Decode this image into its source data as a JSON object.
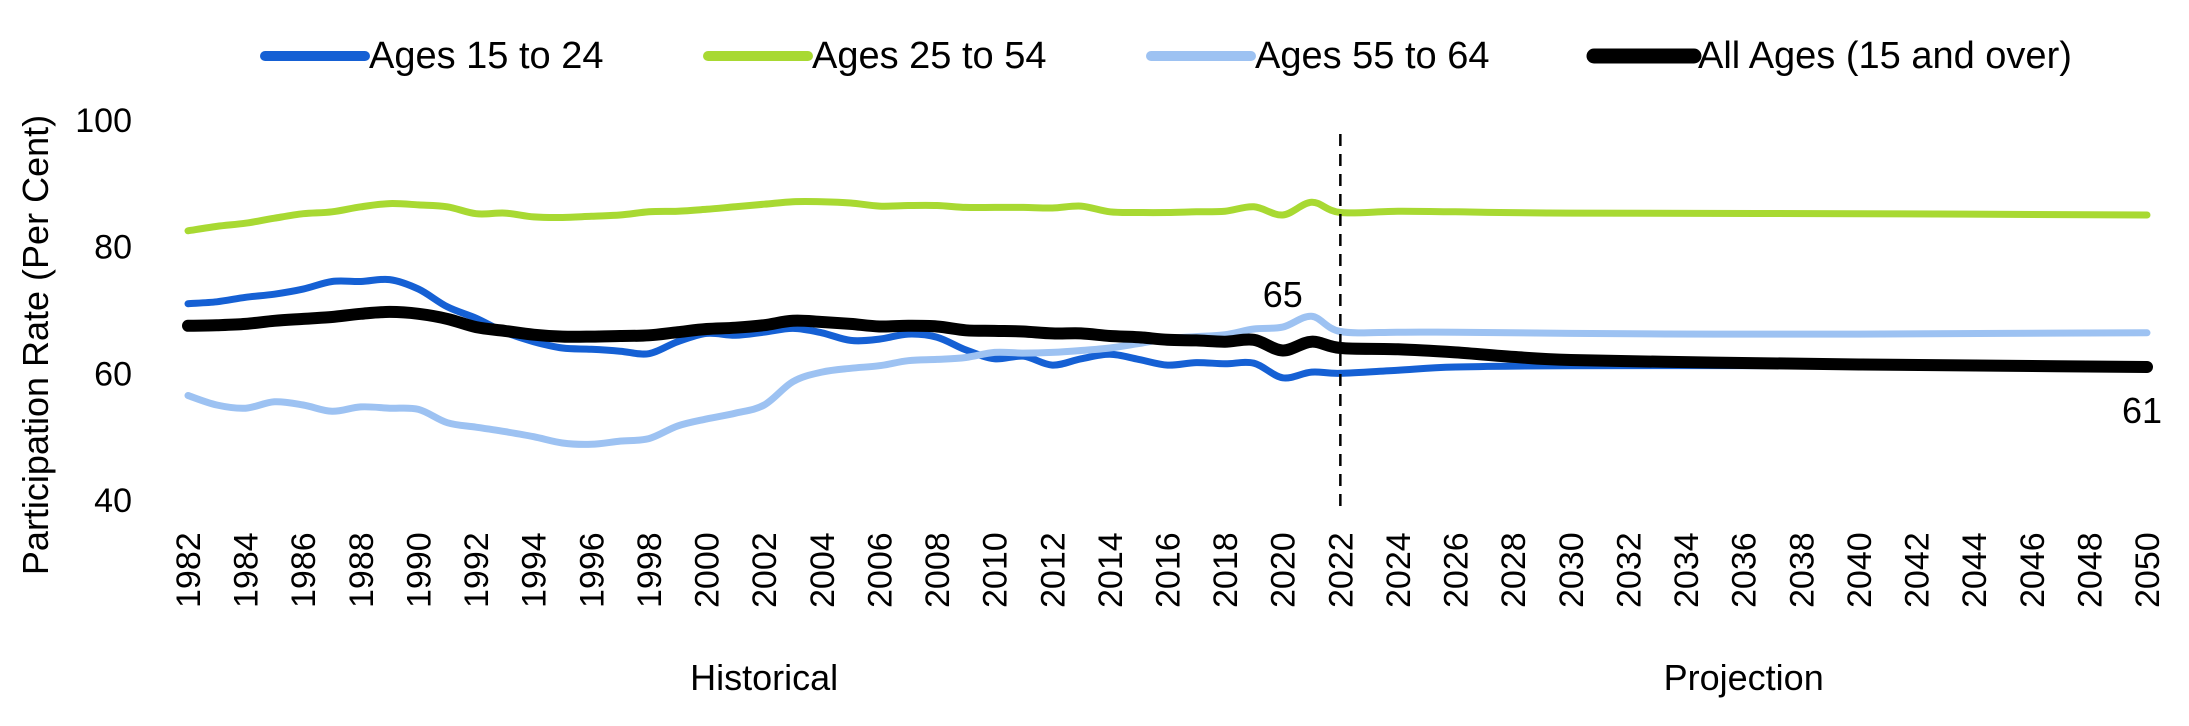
{
  "chart_data": {
    "type": "line",
    "title": "",
    "xlabel": "",
    "ylabel": "Participation Rate (Per Cent)",
    "ylim": [
      40,
      100
    ],
    "yticks": [
      40,
      60,
      80,
      100
    ],
    "xlim": [
      1982,
      2050
    ],
    "xticks": [
      1982,
      1984,
      1986,
      1988,
      1990,
      1992,
      1994,
      1996,
      1998,
      2000,
      2002,
      2004,
      2006,
      2008,
      2010,
      2012,
      2014,
      2016,
      2018,
      2020,
      2022,
      2024,
      2026,
      2028,
      2030,
      2032,
      2034,
      2036,
      2038,
      2040,
      2042,
      2044,
      2046,
      2048,
      2050
    ],
    "grid": false,
    "legend_position": "top",
    "divider_year": 2022,
    "sections": [
      {
        "label": "Historical",
        "from": 1982,
        "to": 2022
      },
      {
        "label": "Projection",
        "from": 2022,
        "to": 2050
      }
    ],
    "annotations": [
      {
        "text": "65",
        "x": 2020,
        "y": 67
      },
      {
        "text": "61",
        "x": 2050,
        "y": 61
      }
    ],
    "series": [
      {
        "name": "Ages 15 to 24",
        "color": "#1560d4",
        "width": 7,
        "points": [
          [
            1982,
            71
          ],
          [
            1983,
            71.3
          ],
          [
            1984,
            72
          ],
          [
            1985,
            72.5
          ],
          [
            1986,
            73.3
          ],
          [
            1987,
            74.5
          ],
          [
            1988,
            74.5
          ],
          [
            1989,
            74.8
          ],
          [
            1990,
            73.3
          ],
          [
            1991,
            70.5
          ],
          [
            1992,
            68.7
          ],
          [
            1993,
            66.5
          ],
          [
            1994,
            65
          ],
          [
            1995,
            64
          ],
          [
            1996,
            63.8
          ],
          [
            1997,
            63.5
          ],
          [
            1998,
            63.1
          ],
          [
            1999,
            65
          ],
          [
            2000,
            66.3
          ],
          [
            2001,
            66
          ],
          [
            2002,
            66.5
          ],
          [
            2003,
            67.1
          ],
          [
            2004,
            66.4
          ],
          [
            2005,
            65.2
          ],
          [
            2006,
            65.4
          ],
          [
            2007,
            66.2
          ],
          [
            2008,
            65.7
          ],
          [
            2009,
            63.7
          ],
          [
            2010,
            62.3
          ],
          [
            2011,
            62.7
          ],
          [
            2012,
            61.3
          ],
          [
            2013,
            62.3
          ],
          [
            2014,
            63
          ],
          [
            2015,
            62.2
          ],
          [
            2016,
            61.3
          ],
          [
            2017,
            61.7
          ],
          [
            2018,
            61.5
          ],
          [
            2019,
            61.6
          ],
          [
            2020,
            59.3
          ],
          [
            2021,
            60.2
          ],
          [
            2022,
            60
          ],
          [
            2024,
            60.5
          ],
          [
            2026,
            61
          ],
          [
            2030,
            61.2
          ],
          [
            2040,
            61.2
          ],
          [
            2050,
            61.2
          ]
        ]
      },
      {
        "name": "Ages 25 to 54",
        "color": "#a8d932",
        "width": 7,
        "points": [
          [
            1982,
            82.5
          ],
          [
            1983,
            83.2
          ],
          [
            1984,
            83.7
          ],
          [
            1985,
            84.5
          ],
          [
            1986,
            85.2
          ],
          [
            1987,
            85.5
          ],
          [
            1988,
            86.3
          ],
          [
            1989,
            86.8
          ],
          [
            1990,
            86.6
          ],
          [
            1991,
            86.3
          ],
          [
            1992,
            85.2
          ],
          [
            1993,
            85.3
          ],
          [
            1994,
            84.7
          ],
          [
            1995,
            84.6
          ],
          [
            1996,
            84.8
          ],
          [
            1997,
            85
          ],
          [
            1998,
            85.5
          ],
          [
            1999,
            85.6
          ],
          [
            2000,
            85.9
          ],
          [
            2001,
            86.3
          ],
          [
            2002,
            86.7
          ],
          [
            2003,
            87.1
          ],
          [
            2004,
            87.1
          ],
          [
            2005,
            86.9
          ],
          [
            2006,
            86.4
          ],
          [
            2007,
            86.5
          ],
          [
            2008,
            86.5
          ],
          [
            2009,
            86.2
          ],
          [
            2010,
            86.2
          ],
          [
            2011,
            86.2
          ],
          [
            2012,
            86.1
          ],
          [
            2013,
            86.4
          ],
          [
            2014,
            85.5
          ],
          [
            2015,
            85.4
          ],
          [
            2016,
            85.4
          ],
          [
            2017,
            85.5
          ],
          [
            2018,
            85.6
          ],
          [
            2019,
            86.3
          ],
          [
            2020,
            85
          ],
          [
            2021,
            87
          ],
          [
            2022,
            85.4
          ],
          [
            2024,
            85.6
          ],
          [
            2026,
            85.5
          ],
          [
            2030,
            85.3
          ],
          [
            2040,
            85.2
          ],
          [
            2050,
            85
          ]
        ]
      },
      {
        "name": "Ages 55 to 64",
        "color": "#9dc2f2",
        "width": 7,
        "points": [
          [
            1982,
            56.5
          ],
          [
            1983,
            55
          ],
          [
            1984,
            54.5
          ],
          [
            1985,
            55.5
          ],
          [
            1986,
            55
          ],
          [
            1987,
            54
          ],
          [
            1988,
            54.7
          ],
          [
            1989,
            54.5
          ],
          [
            1990,
            54.3
          ],
          [
            1991,
            52.2
          ],
          [
            1992,
            51.5
          ],
          [
            1993,
            50.8
          ],
          [
            1994,
            50
          ],
          [
            1995,
            49
          ],
          [
            1996,
            48.8
          ],
          [
            1997,
            49.3
          ],
          [
            1998,
            49.7
          ],
          [
            1999,
            51.7
          ],
          [
            2000,
            52.8
          ],
          [
            2001,
            53.7
          ],
          [
            2002,
            55
          ],
          [
            2003,
            58.7
          ],
          [
            2004,
            60.2
          ],
          [
            2005,
            60.8
          ],
          [
            2006,
            61.2
          ],
          [
            2007,
            62
          ],
          [
            2008,
            62.2
          ],
          [
            2009,
            62.5
          ],
          [
            2010,
            63.3
          ],
          [
            2011,
            63.2
          ],
          [
            2012,
            63.3
          ],
          [
            2013,
            63.6
          ],
          [
            2014,
            64
          ],
          [
            2015,
            64.7
          ],
          [
            2016,
            65.5
          ],
          [
            2017,
            65.8
          ],
          [
            2018,
            66.1
          ],
          [
            2019,
            67
          ],
          [
            2020,
            67.3
          ],
          [
            2021,
            69
          ],
          [
            2022,
            66.6
          ],
          [
            2024,
            66.5
          ],
          [
            2026,
            66.5
          ],
          [
            2030,
            66.3
          ],
          [
            2035,
            66.2
          ],
          [
            2040,
            66.2
          ],
          [
            2045,
            66.3
          ],
          [
            2050,
            66.4
          ]
        ]
      },
      {
        "name": "All Ages (15 and over)",
        "color": "#000000",
        "width": 12,
        "points": [
          [
            1982,
            67.5
          ],
          [
            1983,
            67.6
          ],
          [
            1984,
            67.8
          ],
          [
            1985,
            68.3
          ],
          [
            1986,
            68.6
          ],
          [
            1987,
            68.9
          ],
          [
            1988,
            69.4
          ],
          [
            1989,
            69.7
          ],
          [
            1990,
            69.4
          ],
          [
            1991,
            68.6
          ],
          [
            1992,
            67.3
          ],
          [
            1993,
            66.7
          ],
          [
            1994,
            66.1
          ],
          [
            1995,
            65.8
          ],
          [
            1996,
            65.8
          ],
          [
            1997,
            65.9
          ],
          [
            1998,
            66
          ],
          [
            1999,
            66.5
          ],
          [
            2000,
            67
          ],
          [
            2001,
            67.2
          ],
          [
            2002,
            67.6
          ],
          [
            2003,
            68.3
          ],
          [
            2004,
            68.1
          ],
          [
            2005,
            67.8
          ],
          [
            2006,
            67.4
          ],
          [
            2007,
            67.5
          ],
          [
            2008,
            67.4
          ],
          [
            2009,
            66.8
          ],
          [
            2010,
            66.7
          ],
          [
            2011,
            66.6
          ],
          [
            2012,
            66.3
          ],
          [
            2013,
            66.3
          ],
          [
            2014,
            65.9
          ],
          [
            2015,
            65.7
          ],
          [
            2016,
            65.3
          ],
          [
            2017,
            65.2
          ],
          [
            2018,
            65
          ],
          [
            2019,
            65.3
          ],
          [
            2020,
            63.6
          ],
          [
            2021,
            65
          ],
          [
            2022,
            64
          ],
          [
            2024,
            63.8
          ],
          [
            2026,
            63.3
          ],
          [
            2028,
            62.6
          ],
          [
            2030,
            62.1
          ],
          [
            2035,
            61.7
          ],
          [
            2040,
            61.4
          ],
          [
            2045,
            61.2
          ],
          [
            2050,
            61
          ]
        ]
      }
    ]
  }
}
